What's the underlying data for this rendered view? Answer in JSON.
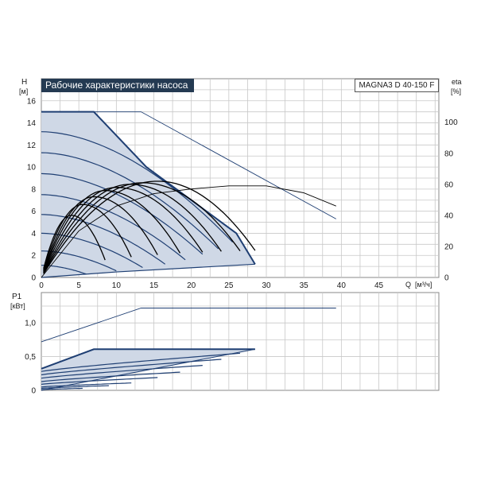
{
  "title": "Рабочие характеристики насоса",
  "model": "MAGNA3 D 40-150 F",
  "colors": {
    "curve": "#1f3f73",
    "fill": "#cfd8e6",
    "grid": "#c8c8c8",
    "eta_curve": "#000000",
    "title_bg": "#243a52"
  },
  "chart_data": [
    {
      "type": "line",
      "name": "head-chart",
      "ylabel": "H",
      "yunit": "[м]",
      "y2label": "eta",
      "y2unit": "[%]",
      "xlabel": "Q",
      "xunit": "[м³/ч]",
      "xlim": [
        0,
        53
      ],
      "ylim": [
        0,
        18
      ],
      "y2lim": [
        0,
        128
      ],
      "xticks": [
        "0",
        "5",
        "10",
        "15",
        "20",
        "25",
        "30",
        "35",
        "40",
        "45"
      ],
      "xtick_values": [
        0,
        5,
        10,
        15,
        20,
        25,
        30,
        35,
        40,
        45
      ],
      "yticks": [
        "0",
        "2",
        "4",
        "6",
        "8",
        "10",
        "12",
        "14",
        "16"
      ],
      "ytick_values": [
        0,
        2,
        4,
        6,
        8,
        10,
        12,
        14,
        16
      ],
      "y2ticks": [
        "0",
        "20",
        "40",
        "60",
        "80",
        "100"
      ],
      "y2tick_values": [
        0,
        20,
        40,
        60,
        80,
        100
      ],
      "grid": true,
      "max_curve": [
        [
          0,
          15
        ],
        [
          7,
          15
        ],
        [
          14,
          10
        ],
        [
          20,
          7
        ],
        [
          26,
          4
        ],
        [
          28.5,
          1.2
        ]
      ],
      "min_curve": [
        [
          0,
          0
        ],
        [
          10,
          0.5
        ],
        [
          28.5,
          1.2
        ]
      ],
      "speed_curves": [
        {
          "h0": 13.2,
          "qmax": 25.5,
          "hend": 3.2
        },
        {
          "h0": 11.3,
          "qmax": 23.6,
          "hend": 2.6
        },
        {
          "h0": 9.4,
          "qmax": 21.5,
          "hend": 2.1
        },
        {
          "h0": 7.5,
          "qmax": 19.2,
          "hend": 1.6
        },
        {
          "h0": 5.7,
          "qmax": 16.5,
          "hend": 1.2
        },
        {
          "h0": 4.0,
          "qmax": 13.5,
          "hend": 0.9
        },
        {
          "h0": 2.4,
          "qmax": 10.0,
          "hend": 0.6
        },
        {
          "h0": 1.1,
          "qmax": 6.0,
          "hend": 0.3
        }
      ],
      "extension_line": [
        [
          7,
          15
        ],
        [
          13.3,
          15
        ],
        [
          39.3,
          5.3
        ]
      ],
      "eta_extended": [
        [
          0,
          0
        ],
        [
          5,
          30
        ],
        [
          10,
          46
        ],
        [
          15,
          54
        ],
        [
          20,
          57
        ],
        [
          25,
          59
        ],
        [
          30,
          59
        ],
        [
          35,
          54.5
        ],
        [
          39.3,
          46
        ]
      ],
      "eta_curves": [
        {
          "qpeak": 15.5,
          "peak": 62,
          "qend": 28.5,
          "qstart": 0.3
        },
        {
          "qpeak": 13.5,
          "peak": 61,
          "qend": 26.5,
          "qstart": 0.3
        },
        {
          "qpeak": 11.8,
          "peak": 60,
          "qend": 24.0,
          "qstart": 0.3
        },
        {
          "qpeak": 10.0,
          "peak": 58,
          "qend": 21.5,
          "qstart": 0.3
        },
        {
          "qpeak": 8.5,
          "peak": 56,
          "qend": 18.5,
          "qstart": 0.3
        },
        {
          "qpeak": 7.0,
          "peak": 52,
          "qend": 15.5,
          "qstart": 0.3
        },
        {
          "qpeak": 5.5,
          "peak": 47,
          "qend": 12.0,
          "qstart": 0.3
        },
        {
          "qpeak": 4.0,
          "peak": 40,
          "qend": 8.5,
          "qstart": 0.3
        }
      ]
    },
    {
      "type": "line",
      "name": "power-chart",
      "ylabel": "P1",
      "yunit": "[кВт]",
      "xlim": [
        0,
        53
      ],
      "ylim": [
        0,
        1.45
      ],
      "yticks": [
        "0",
        "0,5",
        "1,0"
      ],
      "ytick_values": [
        0,
        0.5,
        1.0
      ],
      "grid": true,
      "max_curve": [
        [
          0,
          0.32
        ],
        [
          7,
          0.61
        ],
        [
          28.5,
          0.61
        ]
      ],
      "min_curve": [
        [
          0,
          0.0
        ],
        [
          28.5,
          0.61
        ]
      ],
      "extension_line": [
        [
          0,
          0.72
        ],
        [
          13.3,
          1.22
        ],
        [
          39.3,
          1.22
        ]
      ],
      "power_curves": [
        {
          "p0": 0.28,
          "q1": 26.5,
          "p1": 0.55
        },
        {
          "p0": 0.23,
          "q1": 24.0,
          "p1": 0.46
        },
        {
          "p0": 0.18,
          "q1": 21.5,
          "p1": 0.37
        },
        {
          "p0": 0.13,
          "q1": 18.5,
          "p1": 0.27
        },
        {
          "p0": 0.09,
          "q1": 15.5,
          "p1": 0.19
        },
        {
          "p0": 0.05,
          "q1": 12.0,
          "p1": 0.11
        },
        {
          "p0": 0.03,
          "q1": 9.0,
          "p1": 0.07
        },
        {
          "p0": 0.01,
          "q1": 5.5,
          "p1": 0.03
        }
      ]
    }
  ]
}
